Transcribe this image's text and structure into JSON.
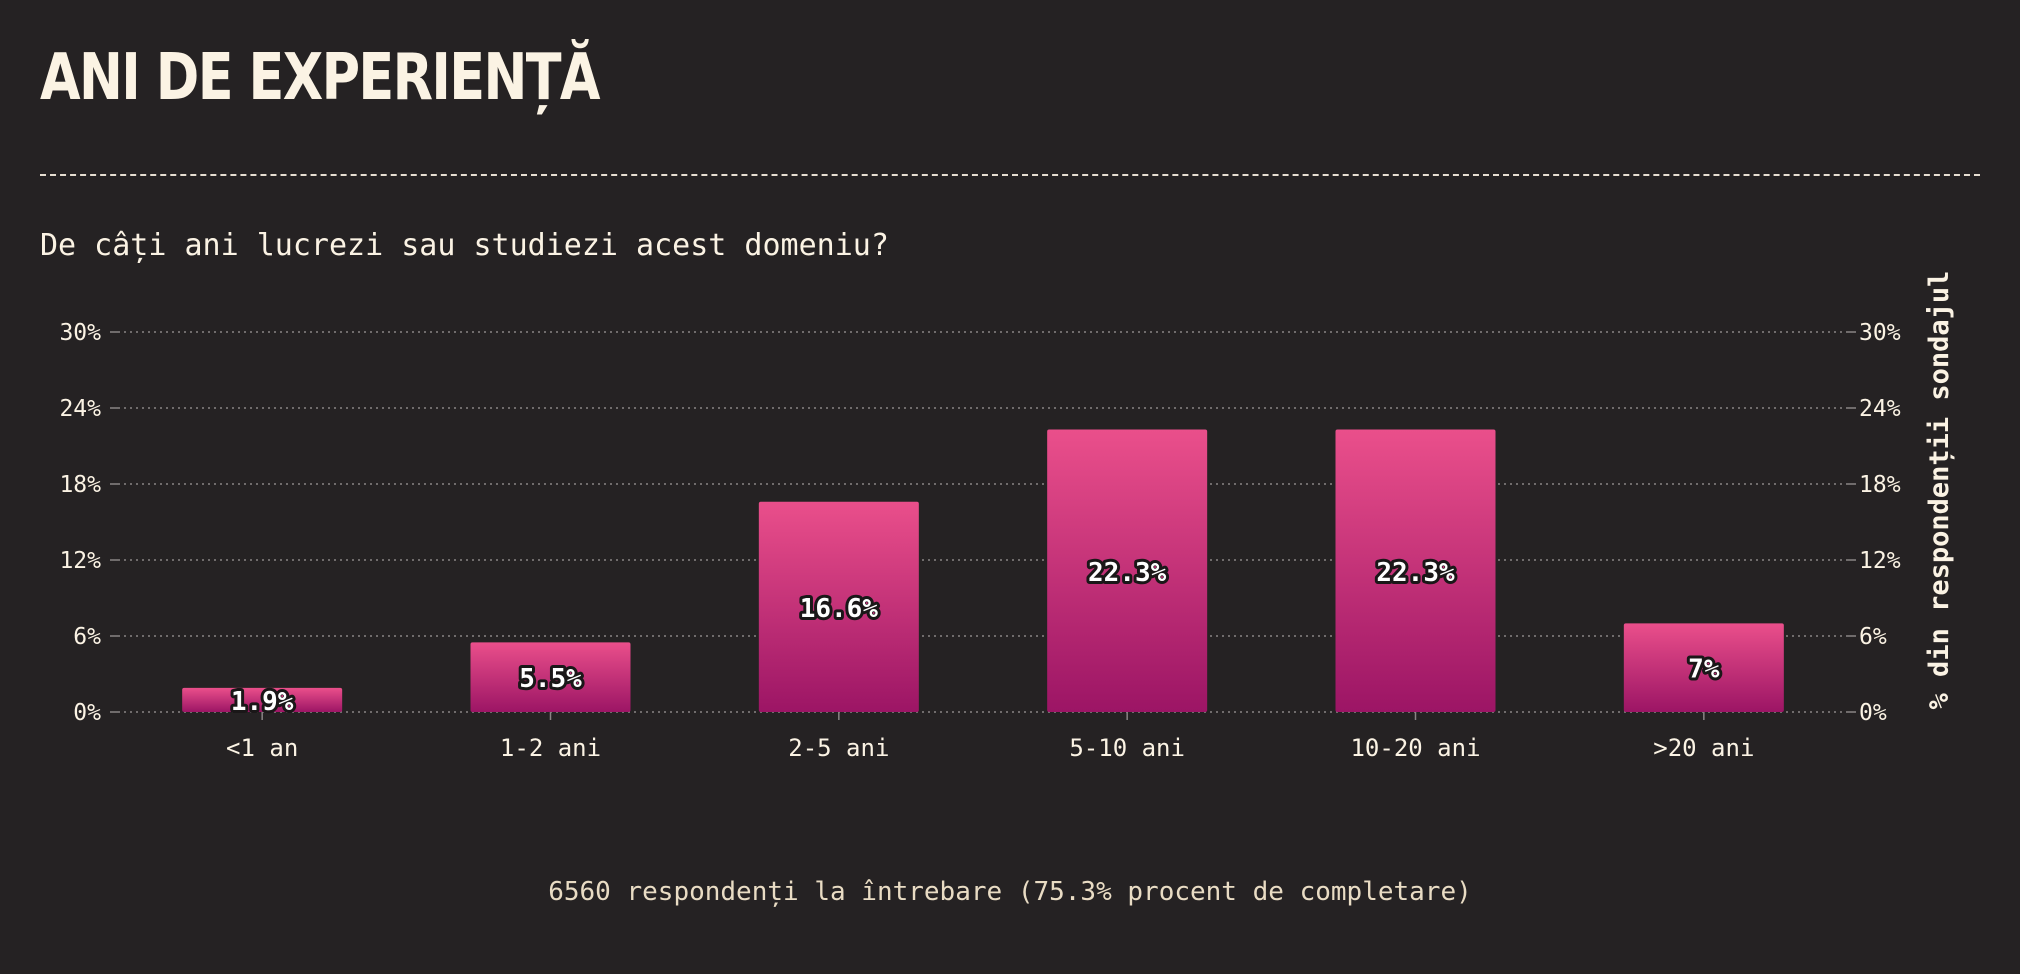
{
  "title": "ANI DE EXPERIENȚĂ",
  "subtitle": "De câți ani lucrezi sau studiezi acest domeniu?",
  "footer": "6560 respondenți la întrebare (75.3% procent de completare)",
  "colors": {
    "background": "#252223",
    "text": "#fbf3e4",
    "bar_top": "#ea4f8b",
    "bar_bottom": "#9c1565",
    "grid": "#8a8485"
  },
  "chart_data": {
    "type": "bar",
    "categories": [
      "<1 an",
      "1-2 ani",
      "2-5 ani",
      "5-10 ani",
      "10-20 ani",
      ">20 ani"
    ],
    "values": [
      1.9,
      5.5,
      16.6,
      22.3,
      22.3,
      7
    ],
    "data_labels": [
      "1.9%",
      "5.5%",
      "16.6%",
      "22.3%",
      "22.3%",
      "7%"
    ],
    "ylim": [
      0,
      30
    ],
    "yticks": [
      0,
      6,
      12,
      18,
      24,
      30
    ],
    "ytick_labels": [
      "0%",
      "6%",
      "12%",
      "18%",
      "24%",
      "30%"
    ],
    "ylabel": "% din respondenții sondajul",
    "xlabel": "",
    "grid": true,
    "legend": false
  }
}
